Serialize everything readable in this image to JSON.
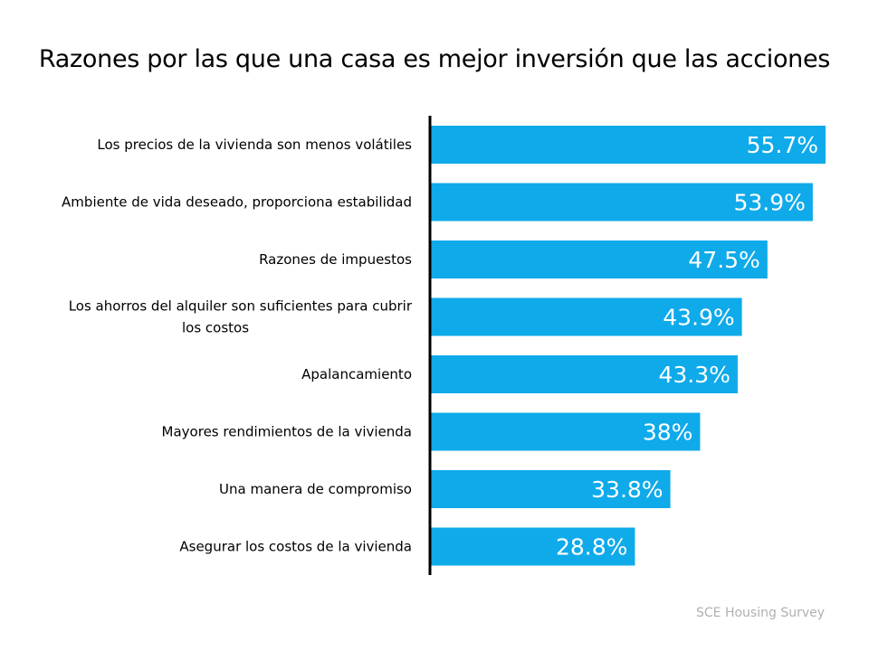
{
  "chart_data": {
    "type": "bar",
    "orientation": "horizontal",
    "title": "Razones por las que una casa es mejor inversión que las acciones",
    "categories": [
      "Los precios de la vivienda son menos volátiles",
      "Ambiente de vida deseado, proporciona estabilidad",
      "Razones de impuestos",
      "Los ahorros del alquiler son suficientes para cubrir los costos",
      "Apalancamiento",
      "Mayores rendimientos de la vivienda",
      "Una manera de compromiso",
      "Asegurar los costos de la vivienda"
    ],
    "category_lines": [
      [
        "Los precios de la vivienda son menos volátiles"
      ],
      [
        "Ambiente de vida deseado, proporciona estabilidad"
      ],
      [
        "Razones de impuestos"
      ],
      [
        "Los ahorros del alquiler son suficientes para cubrir",
        "los costos"
      ],
      [
        "Apalancamiento"
      ],
      [
        "Mayores rendimientos de la vivienda"
      ],
      [
        "Una manera de compromiso"
      ],
      [
        "Asegurar los costos de la vivienda"
      ]
    ],
    "values": [
      55.7,
      53.9,
      47.5,
      43.9,
      43.3,
      38,
      33.8,
      28.8
    ],
    "data_labels": [
      "55.7%",
      "53.9%",
      "47.5%",
      "43.9%",
      "43.3%",
      "38%",
      "33.8%",
      "28.8%"
    ],
    "xlim": [
      0,
      61
    ],
    "grid": false,
    "bar_color": "#0FAAEA",
    "label_color": "#FFFFFF"
  },
  "source": "SCE Housing Survey"
}
